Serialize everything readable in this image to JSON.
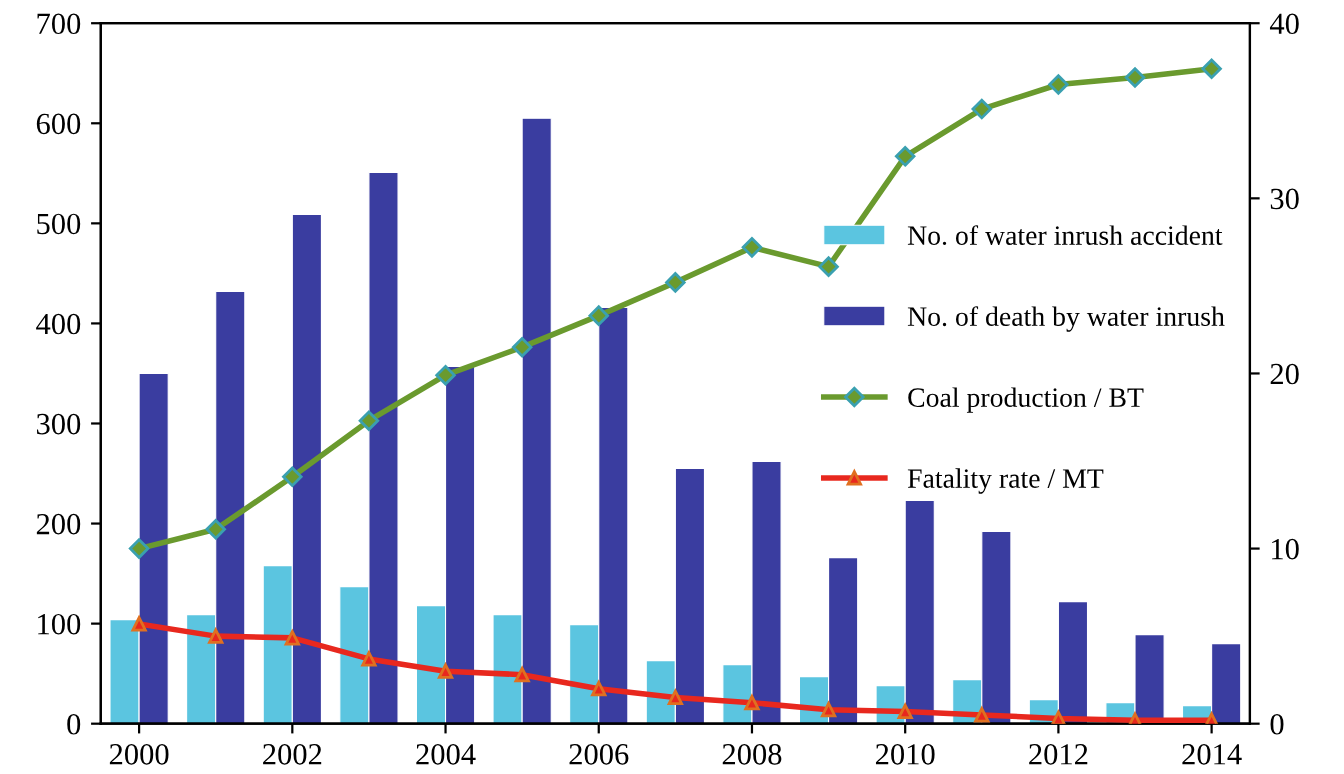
{
  "chart_data": {
    "type": "bar",
    "x": [
      2000,
      2001,
      2002,
      2003,
      2004,
      2005,
      2006,
      2007,
      2008,
      2009,
      2010,
      2011,
      2012,
      2013,
      2014
    ],
    "xlim": [
      1999.5,
      2014.5
    ],
    "xticks": [
      2000,
      2002,
      2004,
      2006,
      2008,
      2010,
      2012,
      2014
    ],
    "ylim": [
      0,
      700
    ],
    "yticks": [
      0,
      100,
      200,
      300,
      400,
      500,
      600,
      700
    ],
    "y2lim": [
      0,
      40
    ],
    "y2ticks": [
      0,
      10,
      20,
      30,
      40
    ],
    "grid": false,
    "legend": "right",
    "series": [
      {
        "name": "No. of water inrush accident",
        "color": "#5bc5e0",
        "values": [
          104,
          109,
          158,
          137,
          118,
          109,
          99,
          63,
          59,
          47,
          38,
          44,
          24,
          21,
          18
        ]
      },
      {
        "name": "No. of death by water inrush",
        "color": "#3a3da0",
        "values": [
          350,
          432,
          509,
          551,
          357,
          605,
          416,
          255,
          262,
          166,
          223,
          192,
          122,
          89,
          80
        ]
      },
      {
        "name": "Coal production / BT",
        "type": "line",
        "axis": "y2",
        "marker": "diamond",
        "color": "#6a9a2e",
        "values": [
          10.0,
          11.1,
          14.1,
          17.3,
          19.9,
          21.5,
          23.3,
          25.2,
          27.2,
          26.1,
          32.4,
          35.1,
          36.5,
          36.9,
          37.4
        ]
      },
      {
        "name": "Fatality rate / MT",
        "type": "line",
        "axis": "y2",
        "marker": "triangle",
        "color": "#e8281e",
        "values": [
          5.7,
          5.0,
          4.9,
          3.7,
          3.0,
          2.8,
          2.0,
          1.5,
          1.2,
          0.8,
          0.7,
          0.5,
          0.3,
          0.2,
          0.2
        ]
      }
    ]
  }
}
